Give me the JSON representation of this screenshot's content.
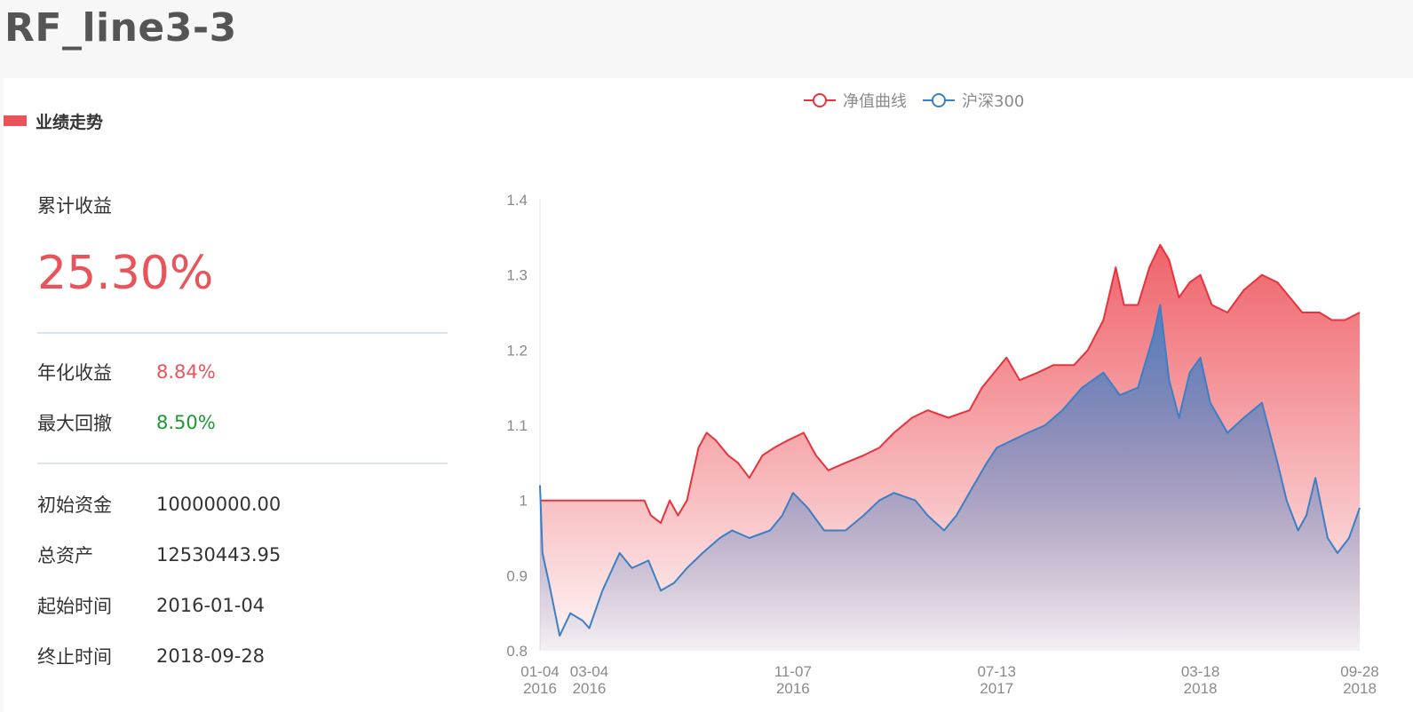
{
  "page": {
    "title": "RF_line3-3"
  },
  "section": {
    "title": "业绩走势"
  },
  "stats": {
    "cumulative_label": "累计收益",
    "cumulative_value": "25.30%",
    "annual_label": "年化收益",
    "annual_value": "8.84%",
    "drawdown_label": "最大回撤",
    "drawdown_value": "8.50%",
    "initial_label": "初始资金",
    "initial_value": "10000000.00",
    "total_label": "总资产",
    "total_value": "12530443.95",
    "start_label": "起始时间",
    "start_value": "2016-01-04",
    "end_label": "终止时间",
    "end_value": "2018-09-28"
  },
  "colors": {
    "accent_red": "#e9545a",
    "gain_red": "#e9545a",
    "drawdown_green": "#1a9a2e",
    "series_red": "#e8323c",
    "series_blue": "#3b7fc4"
  },
  "chart_data": {
    "type": "area",
    "legend_position": "top",
    "grid": false,
    "ylim": [
      0.8,
      1.4
    ],
    "yticks": [
      "0.8",
      "0.9",
      "1",
      "1.1",
      "1.2",
      "1.3",
      "1.4"
    ],
    "xticks": [
      {
        "date": "2016-01-04",
        "line1": "01-04",
        "line2": "2016"
      },
      {
        "date": "2016-03-04",
        "line1": "03-04",
        "line2": "2016"
      },
      {
        "date": "2016-11-07",
        "line1": "11-07",
        "line2": "2016"
      },
      {
        "date": "2017-07-13",
        "line1": "07-13",
        "line2": "2017"
      },
      {
        "date": "2018-03-18",
        "line1": "03-18",
        "line2": "2018"
      },
      {
        "date": "2018-09-28",
        "line1": "09-28",
        "line2": "2018"
      }
    ],
    "series": [
      {
        "name": "净值曲线",
        "color": "#e8323c",
        "points": [
          [
            "2016-01-04",
            1.0
          ],
          [
            "2016-02-15",
            1.0
          ],
          [
            "2016-03-15",
            1.0
          ],
          [
            "2016-04-15",
            1.0
          ],
          [
            "2016-05-10",
            1.0
          ],
          [
            "2016-05-18",
            0.98
          ],
          [
            "2016-05-30",
            0.97
          ],
          [
            "2016-06-10",
            1.0
          ],
          [
            "2016-06-20",
            0.98
          ],
          [
            "2016-07-01",
            1.0
          ],
          [
            "2016-07-15",
            1.07
          ],
          [
            "2016-07-25",
            1.09
          ],
          [
            "2016-08-05",
            1.08
          ],
          [
            "2016-08-20",
            1.06
          ],
          [
            "2016-09-01",
            1.05
          ],
          [
            "2016-09-15",
            1.03
          ],
          [
            "2016-10-01",
            1.06
          ],
          [
            "2016-10-15",
            1.07
          ],
          [
            "2016-11-01",
            1.08
          ],
          [
            "2016-11-20",
            1.09
          ],
          [
            "2016-12-05",
            1.06
          ],
          [
            "2016-12-20",
            1.04
          ],
          [
            "2017-01-10",
            1.05
          ],
          [
            "2017-02-01",
            1.06
          ],
          [
            "2017-02-20",
            1.07
          ],
          [
            "2017-03-10",
            1.09
          ],
          [
            "2017-04-01",
            1.11
          ],
          [
            "2017-04-20",
            1.12
          ],
          [
            "2017-05-15",
            1.11
          ],
          [
            "2017-06-10",
            1.12
          ],
          [
            "2017-06-25",
            1.15
          ],
          [
            "2017-07-10",
            1.17
          ],
          [
            "2017-07-25",
            1.19
          ],
          [
            "2017-08-10",
            1.16
          ],
          [
            "2017-09-01",
            1.17
          ],
          [
            "2017-09-20",
            1.18
          ],
          [
            "2017-10-15",
            1.18
          ],
          [
            "2017-11-01",
            1.2
          ],
          [
            "2017-11-20",
            1.24
          ],
          [
            "2017-12-05",
            1.31
          ],
          [
            "2017-12-15",
            1.26
          ],
          [
            "2018-01-01",
            1.26
          ],
          [
            "2018-01-15",
            1.31
          ],
          [
            "2018-01-28",
            1.34
          ],
          [
            "2018-02-08",
            1.32
          ],
          [
            "2018-02-20",
            1.27
          ],
          [
            "2018-03-05",
            1.29
          ],
          [
            "2018-03-18",
            1.3
          ],
          [
            "2018-04-01",
            1.26
          ],
          [
            "2018-04-20",
            1.25
          ],
          [
            "2018-05-10",
            1.28
          ],
          [
            "2018-06-01",
            1.3
          ],
          [
            "2018-06-20",
            1.29
          ],
          [
            "2018-07-05",
            1.27
          ],
          [
            "2018-07-20",
            1.25
          ],
          [
            "2018-08-10",
            1.25
          ],
          [
            "2018-08-25",
            1.24
          ],
          [
            "2018-09-10",
            1.24
          ],
          [
            "2018-09-28",
            1.25
          ]
        ]
      },
      {
        "name": "沪深300",
        "color": "#3b7fc4",
        "points": [
          [
            "2016-01-04",
            1.02
          ],
          [
            "2016-01-07",
            0.93
          ],
          [
            "2016-01-15",
            0.89
          ],
          [
            "2016-01-28",
            0.82
          ],
          [
            "2016-02-10",
            0.85
          ],
          [
            "2016-02-25",
            0.84
          ],
          [
            "2016-03-04",
            0.83
          ],
          [
            "2016-03-20",
            0.88
          ],
          [
            "2016-04-10",
            0.93
          ],
          [
            "2016-04-25",
            0.91
          ],
          [
            "2016-05-15",
            0.92
          ],
          [
            "2016-05-30",
            0.88
          ],
          [
            "2016-06-15",
            0.89
          ],
          [
            "2016-07-01",
            0.91
          ],
          [
            "2016-07-20",
            0.93
          ],
          [
            "2016-08-10",
            0.95
          ],
          [
            "2016-08-25",
            0.96
          ],
          [
            "2016-09-15",
            0.95
          ],
          [
            "2016-10-10",
            0.96
          ],
          [
            "2016-10-25",
            0.98
          ],
          [
            "2016-11-07",
            1.01
          ],
          [
            "2016-11-25",
            0.99
          ],
          [
            "2016-12-15",
            0.96
          ],
          [
            "2017-01-10",
            0.96
          ],
          [
            "2017-02-01",
            0.98
          ],
          [
            "2017-02-20",
            1.0
          ],
          [
            "2017-03-10",
            1.01
          ],
          [
            "2017-04-05",
            1.0
          ],
          [
            "2017-04-20",
            0.98
          ],
          [
            "2017-05-10",
            0.96
          ],
          [
            "2017-05-25",
            0.98
          ],
          [
            "2017-06-15",
            1.02
          ],
          [
            "2017-07-01",
            1.05
          ],
          [
            "2017-07-13",
            1.07
          ],
          [
            "2017-08-01",
            1.08
          ],
          [
            "2017-08-20",
            1.09
          ],
          [
            "2017-09-10",
            1.1
          ],
          [
            "2017-10-01",
            1.12
          ],
          [
            "2017-10-25",
            1.15
          ],
          [
            "2017-11-20",
            1.17
          ],
          [
            "2017-12-10",
            1.14
          ],
          [
            "2018-01-01",
            1.15
          ],
          [
            "2018-01-20",
            1.22
          ],
          [
            "2018-01-28",
            1.26
          ],
          [
            "2018-02-08",
            1.16
          ],
          [
            "2018-02-20",
            1.11
          ],
          [
            "2018-03-05",
            1.17
          ],
          [
            "2018-03-18",
            1.19
          ],
          [
            "2018-03-30",
            1.13
          ],
          [
            "2018-04-20",
            1.09
          ],
          [
            "2018-05-10",
            1.11
          ],
          [
            "2018-06-01",
            1.13
          ],
          [
            "2018-06-20",
            1.05
          ],
          [
            "2018-07-01",
            1.0
          ],
          [
            "2018-07-15",
            0.96
          ],
          [
            "2018-07-25",
            0.98
          ],
          [
            "2018-08-05",
            1.03
          ],
          [
            "2018-08-20",
            0.95
          ],
          [
            "2018-09-01",
            0.93
          ],
          [
            "2018-09-15",
            0.95
          ],
          [
            "2018-09-28",
            0.99
          ]
        ]
      }
    ]
  }
}
